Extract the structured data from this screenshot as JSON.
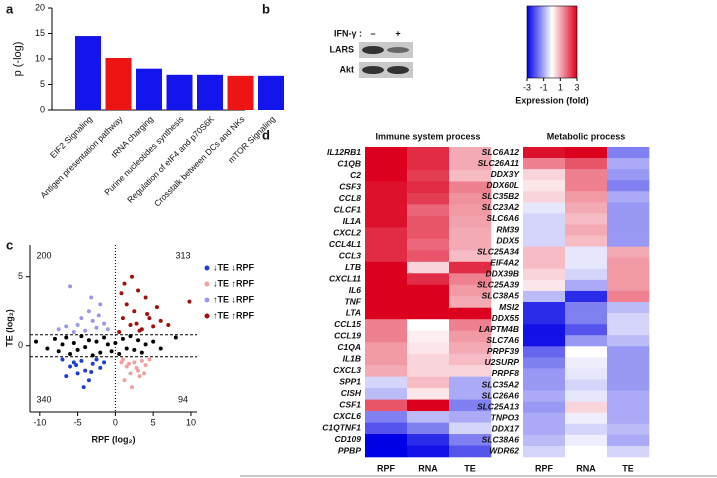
{
  "chart_data": [
    {
      "type": "bar",
      "panel_label": "a",
      "ylabel": "p (-log)",
      "categories": [
        "EIF2 Signaling",
        "Antigen presentation pathway",
        "tRNA charging",
        "Purine nucleotides synthesis",
        "Regulation of eIF4 and p70S6K",
        "Crosstalk between DCs and NKs",
        "mTOR Signaling"
      ],
      "values": [
        14.5,
        10.2,
        8.1,
        6.9,
        6.9,
        6.7,
        6.7
      ],
      "colors": [
        "#1414ee",
        "#ee1414",
        "#1414ee",
        "#1414ee",
        "#1414ee",
        "#ee1414",
        "#1414ee"
      ],
      "ylim": [
        0,
        20
      ],
      "yticks": [
        0,
        5,
        10,
        15,
        20
      ]
    },
    {
      "type": "blot",
      "panel_label": "b",
      "treatment_label": "IFN-γ :",
      "lanes": [
        "–",
        "+"
      ],
      "rows": [
        "LARS",
        "Akt"
      ]
    },
    {
      "type": "scatter",
      "panel_label": "c",
      "xlabel": "RPF (log₂)",
      "ylabel": "TE (log₂)",
      "xlim": [
        -11.3,
        10.8
      ],
      "ylim": [
        -4.8,
        7.3
      ],
      "xticks": [
        -10,
        -5,
        0,
        5,
        10
      ],
      "yticks": [
        0,
        5
      ],
      "hlines": [
        0.8,
        -0.8
      ],
      "vlines": [
        0
      ],
      "quadrant_counts": [
        200,
        313,
        340,
        94
      ],
      "series": [
        {
          "color": "#000000",
          "x": [
            -10.5,
            -9,
            -8,
            -7.5,
            -7,
            -6.5,
            -6,
            -5.5,
            -5,
            -4.5,
            -4,
            -3.5,
            -3,
            -2.5,
            -2,
            -1.5,
            -1,
            -0.5,
            0,
            0.5,
            1,
            1.5,
            2,
            2.5,
            3,
            3.5,
            4,
            5,
            6,
            8
          ],
          "values": [
            0.3,
            -0.2,
            0.5,
            -0.4,
            0.1,
            0.6,
            -0.6,
            0.2,
            -0.3,
            0.7,
            -0.1,
            0.4,
            -0.7,
            0.3,
            -0.5,
            0.6,
            0.1,
            -0.4,
            0.2,
            -0.6,
            0.5,
            -0.2,
            0.7,
            -0.3,
            0.4,
            -0.5,
            0.1,
            0.3,
            -0.2,
            0.6
          ]
        },
        {
          "name": "↓TE ↓RPF",
          "color": "#1f3fd0",
          "x": [
            -7,
            -6,
            -5.5,
            -5,
            -4.5,
            -4,
            -3.5,
            -3,
            -2.5,
            -2,
            -6.5,
            -4.2,
            -3.2,
            -1.5,
            -5.2
          ],
          "values": [
            -1,
            -1.5,
            -1.2,
            -2,
            -1.1,
            -1.8,
            -2.5,
            -1.3,
            -1,
            -1.6,
            -2.2,
            -3,
            -1.9,
            -1.2,
            -1.4
          ]
        },
        {
          "name": "↓TE ↑RPF",
          "color": "#f4a0a0",
          "x": [
            1,
            1.5,
            2,
            2.5,
            3,
            3.5,
            4,
            4.5,
            1.2,
            2.2,
            3.2,
            1.8,
            2.8,
            0.8,
            3.8
          ],
          "values": [
            -1,
            -1.5,
            -2,
            -1.2,
            -1.8,
            -1.1,
            -1.4,
            -1,
            -2.5,
            -3,
            -2.2,
            -1.3,
            -1.6,
            -1.2,
            -2
          ]
        },
        {
          "name": "↑TE ↓RPF",
          "color": "#9a9ae8",
          "x": [
            -7.5,
            -6,
            -5,
            -4.5,
            -4,
            -3.5,
            -3,
            -2.5,
            -2,
            -1.5,
            -1,
            -5.5,
            -3.2,
            -2.2,
            -6.5
          ],
          "values": [
            1.2,
            4.3,
            1.5,
            2,
            1.1,
            2.5,
            1.8,
            1.3,
            3,
            1.6,
            1.2,
            1,
            3.5,
            2.2,
            1.4
          ]
        },
        {
          "name": "↑TE ↑RPF",
          "color": "#a01010",
          "x": [
            0.5,
            1,
            1.5,
            2,
            2.5,
            3,
            3.5,
            4,
            4.5,
            5,
            5.5,
            6,
            7,
            9.8,
            1.2,
            2.2,
            3.2,
            4.2,
            0.8,
            2.8
          ],
          "values": [
            1,
            2,
            3,
            1.5,
            2.5,
            4,
            1.2,
            3.5,
            2,
            1.4,
            2.8,
            1.8,
            1.5,
            3.2,
            4.5,
            5,
            1.1,
            2.3,
            3.8,
            1.6
          ]
        }
      ]
    },
    {
      "type": "heatmap",
      "panel_label": "d",
      "columns": [
        "RPF",
        "RNA",
        "TE"
      ],
      "colorbar": {
        "lim": [
          -3,
          3
        ],
        "ticks": [
          -3,
          -1,
          1,
          3
        ],
        "label": "Expression (fold)"
      },
      "panels": [
        {
          "title": "Immune system process",
          "genes": [
            "IL12RB1",
            "C1QB",
            "C2",
            "CSF3",
            "CCL8",
            "CLCF1",
            "IL1A",
            "CXCL2",
            "CCL4L1",
            "CCL3",
            "LTB",
            "CXCL11",
            "IL6",
            "TNF",
            "LTA",
            "CCL15",
            "CCL19",
            "C1QA",
            "IL1B",
            "CXCL3",
            "SPP1",
            "CISH",
            "CSF1",
            "CXCL6",
            "C1QTNF1",
            "CD109",
            "PPBP"
          ],
          "values": [
            [
              3,
              2.5,
              1
            ],
            [
              3,
              2.5,
              1
            ],
            [
              3,
              2.3,
              0.8
            ],
            [
              2.8,
              2.5,
              1.5
            ],
            [
              2.8,
              2.3,
              1.3
            ],
            [
              2.8,
              1.8,
              1.2
            ],
            [
              2.8,
              2,
              1.1
            ],
            [
              2.5,
              2,
              1
            ],
            [
              2.5,
              1.8,
              1
            ],
            [
              2.5,
              2,
              0.8
            ],
            [
              3,
              0.5,
              2.5
            ],
            [
              3,
              2.5,
              1.5
            ],
            [
              3,
              3,
              1.2
            ],
            [
              3,
              3,
              1
            ],
            [
              3,
              3,
              3
            ],
            [
              1.5,
              0,
              1.5
            ],
            [
              1.5,
              0.2,
              1.2
            ],
            [
              1.2,
              0.3,
              1
            ],
            [
              1.2,
              0.5,
              0.8
            ],
            [
              1,
              0.5,
              0.5
            ],
            [
              -0.5,
              0.8,
              -1
            ],
            [
              -0.8,
              0.3,
              -1
            ],
            [
              2,
              3,
              -1.5
            ],
            [
              -1.5,
              -0.8,
              -1
            ],
            [
              -2,
              -1.5,
              -0.5
            ],
            [
              -3,
              -2.5,
              -1.5
            ],
            [
              -3,
              -2.8,
              -2
            ]
          ]
        },
        {
          "title": "Metabolic process",
          "genes": [
            "SLC6A12",
            "SLC26A11",
            "DDX3Y",
            "DDX60L",
            "SLC35B2",
            "SLC23A2",
            "SLC6A6",
            "RM39",
            "DDX5",
            "SLC25A34",
            "EIF4A2",
            "DDX39B",
            "SLC25A39",
            "SLC38A5",
            "MSI2",
            "DDX55",
            "LAPTM4B",
            "SLC7A6",
            "PRPF39",
            "U2SURP",
            "PRPF8",
            "SLC35A2",
            "SLC26A6",
            "SLC25A13",
            "TNPO3",
            "DDX17",
            "SLC38A6",
            "WDR62"
          ],
          "values": [
            [
              2.8,
              3,
              -1.5
            ],
            [
              1.5,
              2,
              -1
            ],
            [
              0.5,
              1.5,
              -1.2
            ],
            [
              0.3,
              1.5,
              -1.5
            ],
            [
              0.5,
              1.2,
              -1
            ],
            [
              -0.3,
              1,
              -1.2
            ],
            [
              -0.5,
              0.8,
              -1.2
            ],
            [
              -0.5,
              1,
              -1.2
            ],
            [
              -0.5,
              0.8,
              -1.2
            ],
            [
              0.8,
              -0.3,
              1
            ],
            [
              0.8,
              -0.3,
              1.2
            ],
            [
              0.5,
              -0.5,
              1.2
            ],
            [
              0.3,
              -1,
              1.2
            ],
            [
              -0.8,
              -2.5,
              1.5
            ],
            [
              -2.5,
              -1.5,
              -0.8
            ],
            [
              -2.5,
              -1.5,
              -0.5
            ],
            [
              -2.8,
              -2,
              -0.5
            ],
            [
              -2.8,
              -1.2,
              -0.8
            ],
            [
              -1.8,
              0,
              -1.2
            ],
            [
              -1.5,
              -0.2,
              -1.2
            ],
            [
              -1.2,
              -0.3,
              -1.2
            ],
            [
              -1.2,
              -0.5,
              -1.2
            ],
            [
              -1,
              -0.3,
              -1
            ],
            [
              -1.2,
              0.5,
              -1
            ],
            [
              -1,
              -0.2,
              -1
            ],
            [
              -1,
              -0.5,
              -0.8
            ],
            [
              -0.8,
              -0.2,
              -1
            ],
            [
              -0.5,
              0,
              -0.5
            ]
          ]
        }
      ]
    }
  ]
}
